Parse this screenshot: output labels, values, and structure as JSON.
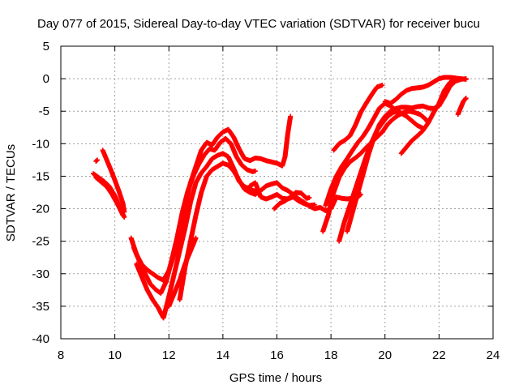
{
  "chart_data": {
    "type": "scatter",
    "title": "Day 077 of 2015, Sidereal Day-to-day VTEC variation (SDTVAR) for receiver bucu",
    "xlabel": "GPS time / hours",
    "ylabel": "SDTVAR / TECUs",
    "xlim": [
      8,
      24
    ],
    "ylim": [
      -40,
      5
    ],
    "xticks": [
      "8",
      "10",
      "12",
      "14",
      "16",
      "18",
      "20",
      "22",
      "24"
    ],
    "yticks": [
      "5",
      "0",
      "-5",
      "-10",
      "-15",
      "-20",
      "-25",
      "-30",
      "-35",
      "-40"
    ],
    "grid": true,
    "marker": "+",
    "color": "#ff0000",
    "series": [
      {
        "points": [
          [
            9.3,
            -12.7
          ],
          [
            9.35,
            -12.5
          ]
        ]
      },
      {
        "points": [
          [
            9.2,
            -14.6
          ],
          [
            9.4,
            -15.2
          ],
          [
            9.6,
            -15.8
          ],
          [
            9.8,
            -16.6
          ],
          [
            10.0,
            -18.0
          ],
          [
            10.2,
            -20.0
          ],
          [
            10.35,
            -21.3
          ]
        ]
      },
      {
        "points": [
          [
            9.3,
            -15.2
          ],
          [
            9.5,
            -15.9
          ],
          [
            9.7,
            -16.6
          ],
          [
            9.9,
            -17.8
          ],
          [
            10.1,
            -19.3
          ],
          [
            10.3,
            -21.0
          ]
        ]
      },
      {
        "points": [
          [
            9.55,
            -11.0
          ],
          [
            9.7,
            -12.5
          ],
          [
            9.85,
            -14.0
          ],
          [
            10.0,
            -15.6
          ],
          [
            10.15,
            -17.3
          ],
          [
            10.3,
            -19.2
          ],
          [
            10.35,
            -20.5
          ]
        ]
      },
      {
        "points": [
          [
            10.6,
            -24.5
          ],
          [
            10.8,
            -27.0
          ],
          [
            11.0,
            -28.6
          ],
          [
            11.2,
            -29.4
          ],
          [
            11.4,
            -30.0
          ],
          [
            11.6,
            -30.6
          ],
          [
            11.8,
            -31.0
          ],
          [
            12.0,
            -29.5
          ],
          [
            12.2,
            -27.0
          ],
          [
            12.4,
            -23.8
          ],
          [
            12.6,
            -19.5
          ],
          [
            12.8,
            -16.0
          ],
          [
            13.0,
            -13.5
          ],
          [
            13.2,
            -11.0
          ],
          [
            13.4,
            -9.8
          ],
          [
            13.6,
            -10.2
          ],
          [
            13.8,
            -9.0
          ],
          [
            14.0,
            -8.2
          ],
          [
            14.2,
            -7.8
          ],
          [
            14.4,
            -9.0
          ],
          [
            14.6,
            -10.8
          ],
          [
            14.8,
            -12.3
          ],
          [
            15.0,
            -12.6
          ],
          [
            15.2,
            -12.2
          ],
          [
            15.4,
            -12.3
          ],
          [
            15.6,
            -12.6
          ],
          [
            15.8,
            -12.8
          ],
          [
            16.0,
            -13.0
          ],
          [
            16.2,
            -13.4
          ],
          [
            16.3,
            -12.0
          ],
          [
            16.4,
            -8.5
          ],
          [
            16.5,
            -5.8
          ]
        ]
      },
      {
        "points": [
          [
            10.7,
            -26.0
          ],
          [
            10.9,
            -28.0
          ],
          [
            11.1,
            -29.8
          ],
          [
            11.3,
            -31.5
          ],
          [
            11.5,
            -32.4
          ],
          [
            11.7,
            -33.0
          ],
          [
            11.9,
            -31.2
          ],
          [
            12.1,
            -28.0
          ],
          [
            12.3,
            -24.5
          ],
          [
            12.5,
            -20.5
          ],
          [
            12.7,
            -17.3
          ],
          [
            12.9,
            -15.0
          ],
          [
            13.1,
            -13.2
          ],
          [
            13.3,
            -11.8
          ],
          [
            13.5,
            -10.8
          ],
          [
            13.7,
            -11.0
          ],
          [
            13.9,
            -9.8
          ],
          [
            14.1,
            -9.2
          ],
          [
            14.3,
            -10.0
          ],
          [
            14.5,
            -12.0
          ],
          [
            14.7,
            -13.3
          ],
          [
            14.9,
            -14.0
          ],
          [
            15.1,
            -14.3
          ],
          [
            15.2,
            -14.2
          ]
        ]
      },
      {
        "points": [
          [
            10.8,
            -28.5
          ],
          [
            11.0,
            -30.5
          ],
          [
            11.2,
            -32.5
          ],
          [
            11.4,
            -34.0
          ],
          [
            11.6,
            -35.2
          ],
          [
            11.8,
            -36.8
          ],
          [
            12.0,
            -33.5
          ],
          [
            12.2,
            -30.0
          ],
          [
            12.4,
            -26.5
          ],
          [
            12.6,
            -23.0
          ],
          [
            12.8,
            -19.0
          ],
          [
            13.0,
            -16.0
          ],
          [
            13.2,
            -14.5
          ],
          [
            13.4,
            -13.5
          ],
          [
            13.6,
            -12.3
          ],
          [
            13.8,
            -11.8
          ],
          [
            14.0,
            -11.5
          ],
          [
            14.2,
            -12.0
          ],
          [
            14.4,
            -13.8
          ],
          [
            14.6,
            -15.8
          ],
          [
            14.8,
            -16.6
          ],
          [
            15.0,
            -17.0
          ],
          [
            15.2,
            -17.3
          ]
        ]
      },
      {
        "points": [
          [
            12.0,
            -35.0
          ],
          [
            12.2,
            -33.0
          ],
          [
            12.4,
            -31.0
          ],
          [
            12.6,
            -28.5
          ],
          [
            12.8,
            -26.5
          ],
          [
            13.0,
            -24.5
          ]
        ]
      },
      {
        "points": [
          [
            12.4,
            -34.0
          ],
          [
            12.6,
            -29.0
          ],
          [
            12.8,
            -25.0
          ],
          [
            13.0,
            -21.0
          ],
          [
            13.2,
            -17.5
          ],
          [
            13.4,
            -15.0
          ],
          [
            13.6,
            -14.0
          ],
          [
            13.8,
            -13.5
          ],
          [
            14.0,
            -13.0
          ],
          [
            14.2,
            -13.3
          ],
          [
            14.4,
            -14.2
          ],
          [
            14.6,
            -15.6
          ],
          [
            14.8,
            -17.0
          ],
          [
            15.0,
            -17.5
          ],
          [
            15.2,
            -17.8
          ],
          [
            15.4,
            -17.2
          ],
          [
            15.6,
            -16.5
          ],
          [
            15.8,
            -16.2
          ],
          [
            16.0,
            -16.0
          ],
          [
            16.2,
            -16.8
          ],
          [
            16.4,
            -17.2
          ],
          [
            16.6,
            -17.8
          ],
          [
            16.8,
            -18.5
          ],
          [
            17.0,
            -19.0
          ],
          [
            17.2,
            -19.6
          ],
          [
            17.4,
            -20.0
          ],
          [
            17.6,
            -19.8
          ],
          [
            17.8,
            -20.3
          ],
          [
            18.0,
            -20.0
          ]
        ]
      },
      {
        "points": [
          [
            15.0,
            -16.5
          ],
          [
            15.2,
            -16.0
          ],
          [
            15.4,
            -18.2
          ],
          [
            15.6,
            -18.5
          ],
          [
            15.8,
            -18.2
          ],
          [
            16.0,
            -17.8
          ],
          [
            16.2,
            -18.4
          ],
          [
            16.4,
            -18.5
          ],
          [
            16.6,
            -18.2
          ],
          [
            16.8,
            -18.8
          ],
          [
            17.0,
            -19.2
          ],
          [
            17.2,
            -19.5
          ],
          [
            17.4,
            -19.4
          ]
        ]
      },
      {
        "points": [
          [
            15.9,
            -20.0
          ],
          [
            16.1,
            -19.2
          ],
          [
            16.3,
            -18.8
          ],
          [
            16.5,
            -18.2
          ],
          [
            16.7,
            -17.5
          ],
          [
            16.9,
            -17.6
          ],
          [
            17.1,
            -18.4
          ],
          [
            17.2,
            -18.3
          ]
        ]
      },
      {
        "points": [
          [
            17.7,
            -23.5
          ],
          [
            17.9,
            -21.0
          ],
          [
            18.1,
            -17.5
          ],
          [
            18.3,
            -15.2
          ],
          [
            18.5,
            -13.8
          ],
          [
            18.7,
            -12.8
          ],
          [
            18.9,
            -12.2
          ],
          [
            19.1,
            -11.5
          ],
          [
            19.3,
            -10.6
          ],
          [
            19.5,
            -9.8
          ],
          [
            19.7,
            -9.0
          ],
          [
            19.9,
            -8.2
          ],
          [
            20.1,
            -7.0
          ],
          [
            20.3,
            -6.2
          ],
          [
            20.5,
            -5.6
          ],
          [
            20.7,
            -5.2
          ],
          [
            20.9,
            -5.0
          ],
          [
            21.1,
            -5.2
          ],
          [
            21.3,
            -5.5
          ],
          [
            21.5,
            -6.2
          ],
          [
            21.6,
            -6.8
          ]
        ]
      },
      {
        "points": [
          [
            17.8,
            -19.5
          ],
          [
            18.0,
            -17.0
          ],
          [
            18.2,
            -15.0
          ],
          [
            18.4,
            -13.5
          ],
          [
            18.6,
            -12.3
          ],
          [
            18.8,
            -11.0
          ],
          [
            19.0,
            -9.8
          ],
          [
            19.2,
            -8.8
          ],
          [
            19.4,
            -7.5
          ],
          [
            19.6,
            -6.0
          ],
          [
            19.8,
            -4.5
          ],
          [
            20.0,
            -3.8
          ],
          [
            20.2,
            -4.2
          ],
          [
            20.4,
            -4.8
          ],
          [
            20.6,
            -5.3
          ],
          [
            20.8,
            -5.8
          ],
          [
            21.0,
            -6.5
          ],
          [
            21.2,
            -7.2
          ],
          [
            21.4,
            -7.6
          ]
        ]
      },
      {
        "points": [
          [
            18.0,
            -20.0
          ],
          [
            18.2,
            -18.2
          ],
          [
            18.4,
            -18.4
          ],
          [
            18.6,
            -18.5
          ],
          [
            18.8,
            -18.4
          ],
          [
            19.0,
            -18.2
          ],
          [
            19.1,
            -17.8
          ]
        ]
      },
      {
        "points": [
          [
            18.1,
            -11.0
          ],
          [
            18.3,
            -10.0
          ],
          [
            18.5,
            -9.5
          ],
          [
            18.7,
            -8.8
          ],
          [
            18.9,
            -7.2
          ],
          [
            19.1,
            -5.2
          ],
          [
            19.3,
            -3.8
          ],
          [
            19.5,
            -2.5
          ],
          [
            19.7,
            -1.3
          ],
          [
            19.9,
            -1.0
          ]
        ]
      },
      {
        "points": [
          [
            18.3,
            -25.0
          ],
          [
            18.5,
            -22.0
          ],
          [
            18.7,
            -19.5
          ],
          [
            18.9,
            -17.0
          ],
          [
            19.1,
            -14.5
          ],
          [
            19.3,
            -12.0
          ],
          [
            19.5,
            -9.8
          ],
          [
            19.7,
            -8.0
          ],
          [
            19.9,
            -6.8
          ],
          [
            20.1,
            -5.8
          ],
          [
            20.3,
            -5.2
          ],
          [
            20.5,
            -5.0
          ]
        ]
      },
      {
        "points": [
          [
            18.6,
            -23.5
          ],
          [
            18.8,
            -20.5
          ],
          [
            19.0,
            -17.5
          ],
          [
            19.2,
            -14.5
          ],
          [
            19.4,
            -11.5
          ],
          [
            19.6,
            -9.0
          ],
          [
            19.8,
            -7.0
          ],
          [
            20.0,
            -5.8
          ],
          [
            20.2,
            -5.0
          ],
          [
            20.4,
            -4.6
          ],
          [
            20.6,
            -4.4
          ],
          [
            20.8,
            -4.4
          ],
          [
            21.0,
            -4.5
          ],
          [
            21.2,
            -4.3
          ],
          [
            21.4,
            -4.2
          ],
          [
            21.6,
            -4.5
          ],
          [
            21.8,
            -4.6
          ],
          [
            22.0,
            -4.2
          ],
          [
            22.2,
            -2.8
          ],
          [
            22.4,
            -1.2
          ],
          [
            22.6,
            -0.4
          ],
          [
            22.8,
            -0.1
          ],
          [
            23.0,
            0.0
          ]
        ]
      },
      {
        "points": [
          [
            20.0,
            -3.5
          ],
          [
            20.2,
            -3.8
          ],
          [
            20.4,
            -3.2
          ],
          [
            20.6,
            -2.4
          ],
          [
            20.8,
            -1.8
          ],
          [
            21.0,
            -1.5
          ],
          [
            21.2,
            -1.4
          ],
          [
            21.4,
            -1.3
          ],
          [
            21.6,
            -1.0
          ],
          [
            21.8,
            -0.5
          ],
          [
            22.0,
            0.0
          ],
          [
            22.2,
            0.2
          ],
          [
            22.4,
            0.2
          ],
          [
            22.6,
            0.1
          ],
          [
            22.8,
            0.0
          ]
        ]
      },
      {
        "points": [
          [
            20.6,
            -11.5
          ],
          [
            20.8,
            -10.5
          ],
          [
            21.0,
            -9.5
          ],
          [
            21.2,
            -8.8
          ],
          [
            21.4,
            -8.0
          ],
          [
            21.6,
            -6.8
          ],
          [
            21.8,
            -5.2
          ],
          [
            22.0,
            -3.8
          ],
          [
            22.2,
            -1.8
          ],
          [
            22.4,
            -0.6
          ],
          [
            22.6,
            -0.2
          ],
          [
            22.8,
            0.0
          ],
          [
            23.0,
            -0.1
          ]
        ]
      },
      {
        "points": [
          [
            22.7,
            -5.5
          ],
          [
            22.8,
            -4.5
          ],
          [
            22.9,
            -3.5
          ],
          [
            23.0,
            -3.0
          ]
        ]
      }
    ]
  }
}
